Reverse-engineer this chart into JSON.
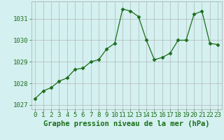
{
  "x": [
    0,
    1,
    2,
    3,
    4,
    5,
    6,
    7,
    8,
    9,
    10,
    11,
    12,
    13,
    14,
    15,
    16,
    17,
    18,
    19,
    20,
    21,
    22,
    23
  ],
  "y": [
    1027.3,
    1027.65,
    1027.8,
    1028.1,
    1028.25,
    1028.65,
    1028.7,
    1029.0,
    1029.1,
    1029.6,
    1029.85,
    1031.45,
    1031.35,
    1031.1,
    1030.0,
    1029.1,
    1029.2,
    1029.4,
    1030.0,
    1030.0,
    1031.2,
    1031.35,
    1029.85,
    1029.8
  ],
  "line_color": "#1a6e1a",
  "marker": "D",
  "marker_size": 2.5,
  "bg_color": "#d4f0f0",
  "grid_color": "#aaaaaa",
  "xlabel": "Graphe pression niveau de la mer (hPa)",
  "xlabel_color": "#1a6e1a",
  "tick_color": "#1a6e1a",
  "ylim": [
    1026.8,
    1031.8
  ],
  "yticks": [
    1027,
    1028,
    1029,
    1030,
    1031
  ],
  "tick_fontsize": 6.5,
  "xlabel_fontsize": 7.5
}
